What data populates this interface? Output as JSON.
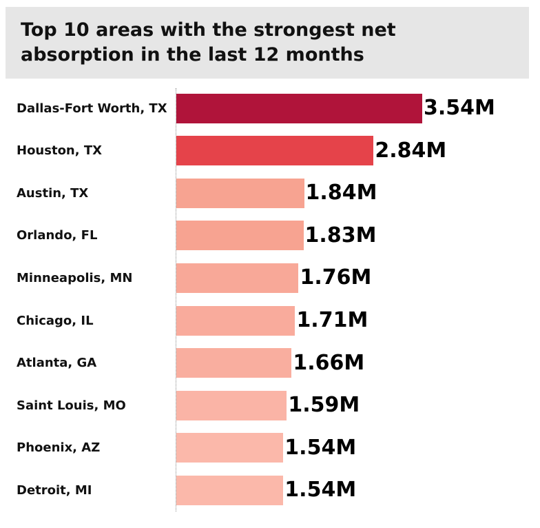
{
  "chart_data": {
    "type": "bar",
    "orientation": "horizontal",
    "title": "Top 10 areas with the strongest net absorption in the last 12 months",
    "categories": [
      "Dallas-Fort Worth, TX",
      "Houston, TX",
      "Austin, TX",
      "Orlando, FL",
      "Minneapolis, MN",
      "Chicago, IL",
      "Atlanta, GA",
      "Saint Louis, MO",
      "Phoenix, AZ",
      "Detroit, MI"
    ],
    "values": [
      3.54,
      2.84,
      1.84,
      1.83,
      1.76,
      1.71,
      1.66,
      1.59,
      1.54,
      1.54
    ],
    "value_labels": [
      "3.54M",
      "2.84M",
      "1.84M",
      "1.83M",
      "1.76M",
      "1.71M",
      "1.66M",
      "1.59M",
      "1.54M",
      "1.54M"
    ],
    "colors": [
      "#b0143a",
      "#e5434a",
      "#f7a391",
      "#f7a391",
      "#f8a898",
      "#f9ab9c",
      "#f9ae9f",
      "#fab4a6",
      "#fbb8aa",
      "#fbb8aa"
    ]
  }
}
